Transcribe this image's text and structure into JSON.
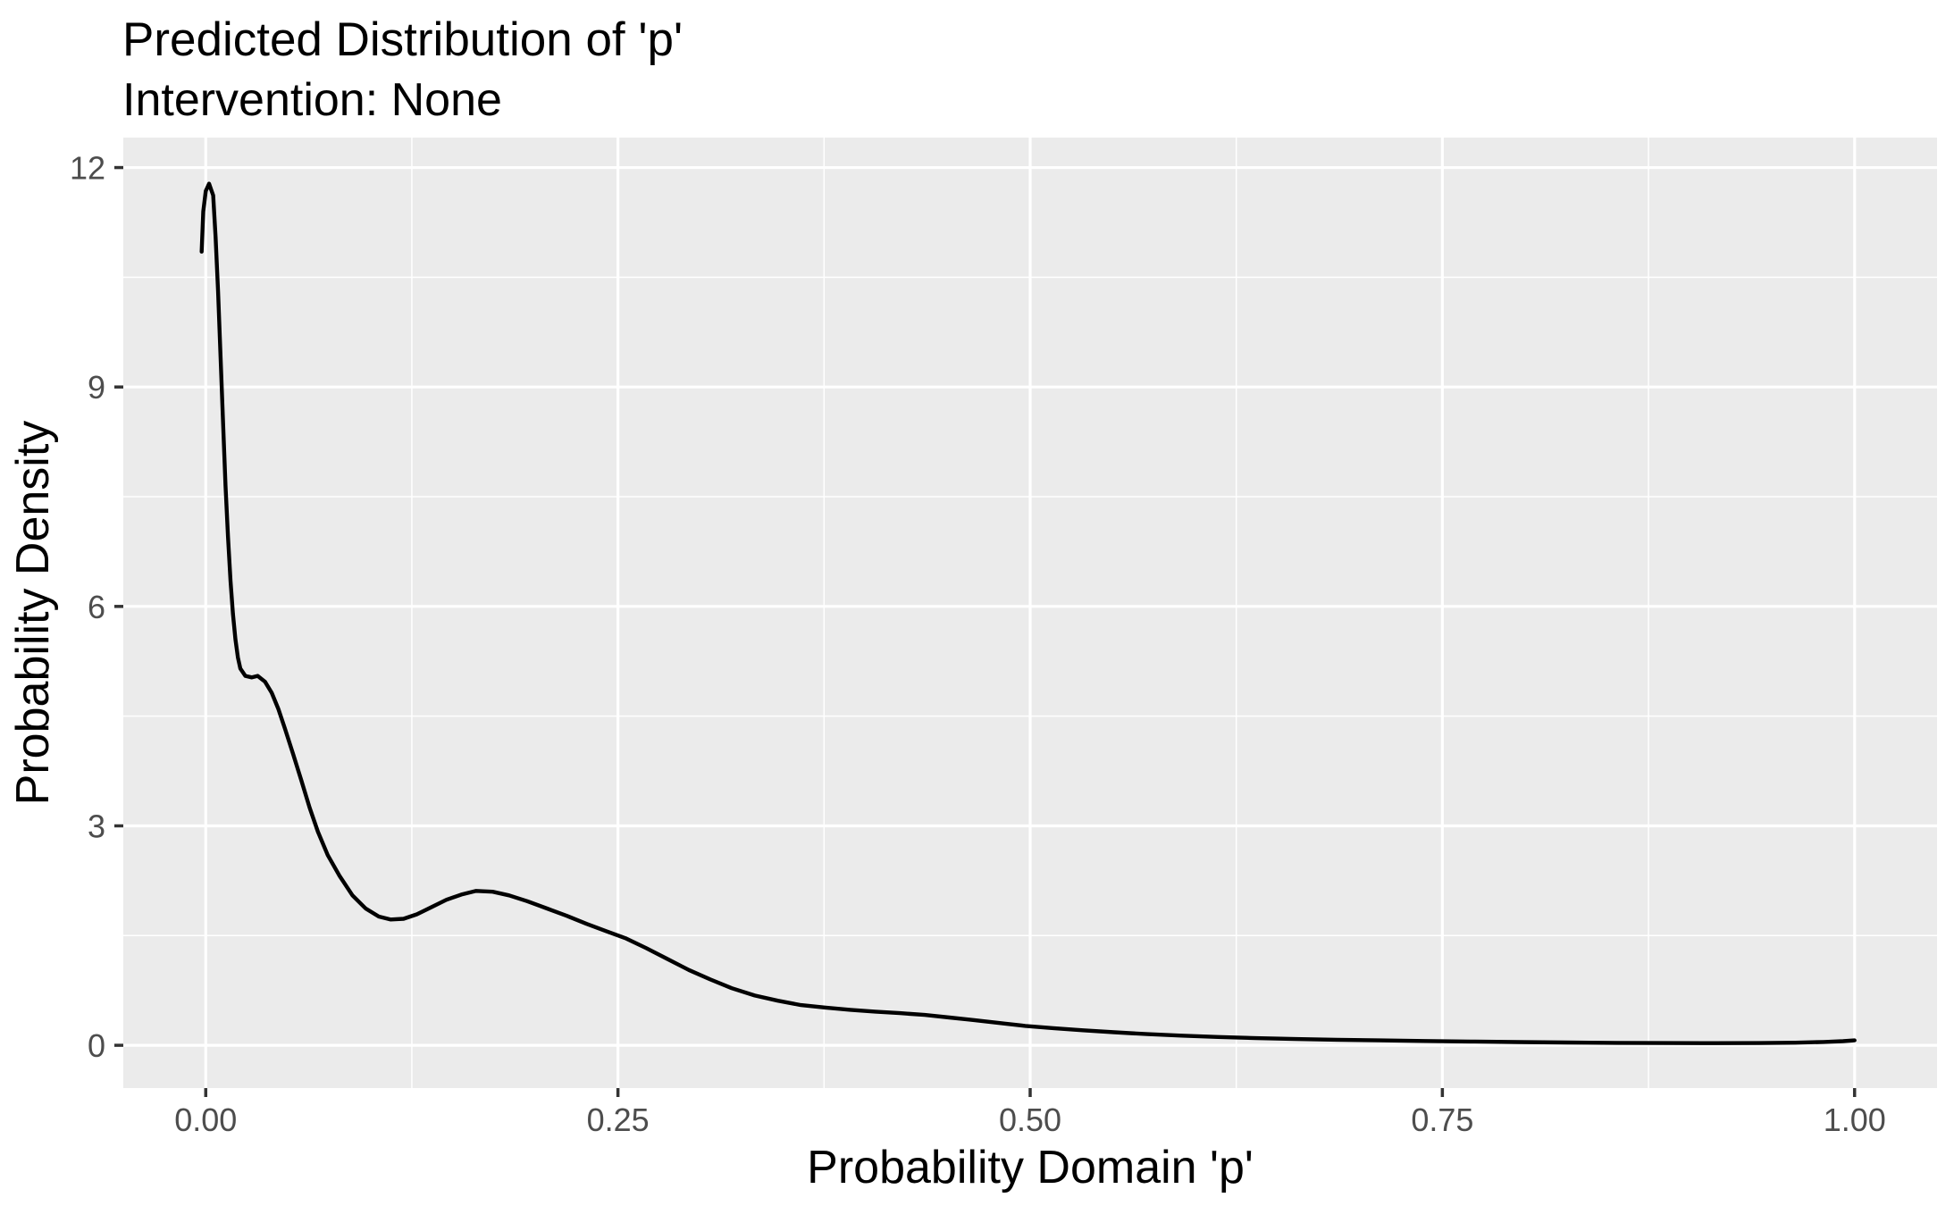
{
  "chart_data": {
    "type": "line",
    "title": "Predicted Distribution of 'p'",
    "subtitle": "Intervention: None",
    "xlabel": "Probability Domain 'p'",
    "ylabel": "Probability Density",
    "legend": "none",
    "grid": {
      "major": true,
      "minor": true
    },
    "x_domain": [
      -0.05,
      1.05
    ],
    "y_domain": [
      -0.585,
      12.41
    ],
    "x_ticks": [
      {
        "value": 0.0,
        "label": "0.00"
      },
      {
        "value": 0.25,
        "label": "0.25"
      },
      {
        "value": 0.5,
        "label": "0.50"
      },
      {
        "value": 0.75,
        "label": "0.75"
      },
      {
        "value": 1.0,
        "label": "1.00"
      }
    ],
    "y_ticks": [
      {
        "value": 0,
        "label": "0"
      },
      {
        "value": 3,
        "label": "3"
      },
      {
        "value": 6,
        "label": "6"
      },
      {
        "value": 9,
        "label": "9"
      },
      {
        "value": 12,
        "label": "12"
      }
    ],
    "x_minor_ticks": [
      0.125,
      0.375,
      0.625,
      0.875
    ],
    "y_minor_ticks": [
      1.5,
      4.5,
      7.5,
      10.5
    ],
    "series": [
      {
        "name": "density-of-p",
        "color": "#000000",
        "points": [
          [
            -0.0025,
            10.85
          ],
          [
            -0.0015,
            11.4
          ],
          [
            0.0,
            11.68
          ],
          [
            0.002,
            11.78
          ],
          [
            0.0045,
            11.62
          ],
          [
            0.006,
            11.05
          ],
          [
            0.0075,
            10.3
          ],
          [
            0.009,
            9.4
          ],
          [
            0.0105,
            8.5
          ],
          [
            0.012,
            7.65
          ],
          [
            0.0135,
            6.95
          ],
          [
            0.015,
            6.35
          ],
          [
            0.0165,
            5.9
          ],
          [
            0.018,
            5.55
          ],
          [
            0.0195,
            5.3
          ],
          [
            0.021,
            5.15
          ],
          [
            0.024,
            5.05
          ],
          [
            0.028,
            5.03
          ],
          [
            0.0315,
            5.05
          ],
          [
            0.036,
            4.97
          ],
          [
            0.04,
            4.82
          ],
          [
            0.044,
            4.6
          ],
          [
            0.048,
            4.33
          ],
          [
            0.053,
            3.98
          ],
          [
            0.058,
            3.62
          ],
          [
            0.063,
            3.25
          ],
          [
            0.068,
            2.92
          ],
          [
            0.074,
            2.6
          ],
          [
            0.081,
            2.32
          ],
          [
            0.089,
            2.05
          ],
          [
            0.097,
            1.87
          ],
          [
            0.105,
            1.76
          ],
          [
            0.112,
            1.72
          ],
          [
            0.12,
            1.73
          ],
          [
            0.128,
            1.79
          ],
          [
            0.137,
            1.89
          ],
          [
            0.146,
            1.99
          ],
          [
            0.155,
            2.06
          ],
          [
            0.164,
            2.11
          ],
          [
            0.174,
            2.1
          ],
          [
            0.184,
            2.05
          ],
          [
            0.195,
            1.97
          ],
          [
            0.207,
            1.87
          ],
          [
            0.219,
            1.77
          ],
          [
            0.231,
            1.66
          ],
          [
            0.243,
            1.56
          ],
          [
            0.255,
            1.46
          ],
          [
            0.267,
            1.33
          ],
          [
            0.28,
            1.18
          ],
          [
            0.293,
            1.03
          ],
          [
            0.306,
            0.9
          ],
          [
            0.319,
            0.78
          ],
          [
            0.333,
            0.68
          ],
          [
            0.347,
            0.61
          ],
          [
            0.361,
            0.55
          ],
          [
            0.376,
            0.515
          ],
          [
            0.391,
            0.485
          ],
          [
            0.406,
            0.46
          ],
          [
            0.421,
            0.44
          ],
          [
            0.436,
            0.415
          ],
          [
            0.451,
            0.38
          ],
          [
            0.466,
            0.345
          ],
          [
            0.481,
            0.305
          ],
          [
            0.497,
            0.265
          ],
          [
            0.514,
            0.235
          ],
          [
            0.532,
            0.205
          ],
          [
            0.551,
            0.178
          ],
          [
            0.571,
            0.153
          ],
          [
            0.592,
            0.132
          ],
          [
            0.614,
            0.113
          ],
          [
            0.637,
            0.098
          ],
          [
            0.661,
            0.086
          ],
          [
            0.686,
            0.076
          ],
          [
            0.712,
            0.067
          ],
          [
            0.739,
            0.059
          ],
          [
            0.767,
            0.051
          ],
          [
            0.796,
            0.044
          ],
          [
            0.826,
            0.038
          ],
          [
            0.856,
            0.033
          ],
          [
            0.886,
            0.03
          ],
          [
            0.915,
            0.029
          ],
          [
            0.942,
            0.031
          ],
          [
            0.964,
            0.036
          ],
          [
            0.981,
            0.045
          ],
          [
            0.993,
            0.056
          ],
          [
            1.0,
            0.067
          ]
        ]
      }
    ]
  },
  "style": {
    "background": "#FFFFFF",
    "panel_bg": "#EBEBEB",
    "grid_color": "#FFFFFF",
    "tick_label_color": "#4D4D4D",
    "tick_mark_color": "#333333",
    "text_color": "#000000",
    "line_color": "#000000"
  }
}
